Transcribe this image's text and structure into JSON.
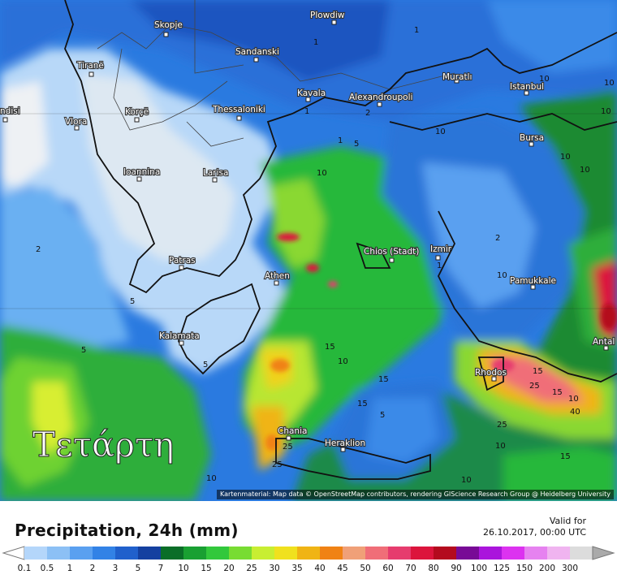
{
  "map": {
    "day_label": "Τετάρτη",
    "attribution": "Kartenmaterial: Map data © OpenStreetMap contributors, rendering GIScience Research Group @ Heidelberg University",
    "cities": [
      {
        "name": "Skopje"
      },
      {
        "name": "Plowdiw"
      },
      {
        "name": "Sandanski"
      },
      {
        "name": "Tiranë"
      },
      {
        "name": "Muratlı"
      },
      {
        "name": "Istanbul"
      },
      {
        "name": "Kavala"
      },
      {
        "name": "Alexandroupoli"
      },
      {
        "name": "ndisi"
      },
      {
        "name": "Korçë"
      },
      {
        "name": "Thessaloniki"
      },
      {
        "name": "Vlora"
      },
      {
        "name": "Bursa"
      },
      {
        "name": "Ioannina"
      },
      {
        "name": "Larisa"
      },
      {
        "name": "Chios (Stadt)"
      },
      {
        "name": "Izmir"
      },
      {
        "name": "Patras"
      },
      {
        "name": "Athen"
      },
      {
        "name": "Pamukkale"
      },
      {
        "name": "Kalamata"
      },
      {
        "name": "Antal"
      },
      {
        "name": "Rhodos"
      },
      {
        "name": "Chania"
      },
      {
        "name": "Heraklion"
      }
    ],
    "contour_labels": [
      "1",
      "1",
      "10",
      "10",
      "1",
      "2",
      "10",
      "10",
      "10",
      "1",
      "5",
      "10",
      "10",
      "2",
      "2",
      "1",
      "10",
      "15",
      "5",
      "5",
      "10",
      "15",
      "15",
      "25",
      "10",
      "25",
      "40",
      "15",
      "25",
      "10",
      "15",
      "25",
      "15",
      "10",
      "5",
      "10",
      "5"
    ]
  },
  "footer": {
    "title": "Precipitation, 24h (mm)",
    "valid_label": "Valid for",
    "valid_value": "26.10.2017, 00:00 UTC"
  },
  "legend": {
    "values": [
      "0.1",
      "0.5",
      "1",
      "2",
      "3",
      "5",
      "7",
      "10",
      "15",
      "20",
      "25",
      "30",
      "35",
      "40",
      "45",
      "50",
      "60",
      "70",
      "80",
      "90",
      "100",
      "125",
      "150",
      "200",
      "300"
    ],
    "colors": [
      "#b4d6fa",
      "#8cc0f5",
      "#5aa0f0",
      "#3282e6",
      "#2060cc",
      "#1440a0",
      "#0a6e28",
      "#19a032",
      "#32c83c",
      "#78dc32",
      "#c8ee32",
      "#f0e11e",
      "#f0b414",
      "#f08214",
      "#f0a078",
      "#f06e78",
      "#e63c6e",
      "#dc143c",
      "#b40a1e",
      "#780a96",
      "#aa14dc",
      "#dc32f0",
      "#e682f0",
      "#f0b4f0",
      "#dcdcdc"
    ],
    "arrow_color": "#aaaaaa"
  }
}
